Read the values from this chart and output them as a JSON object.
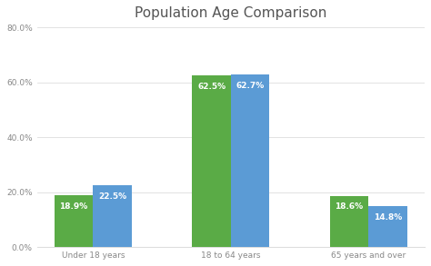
{
  "title": "Population Age Comparison",
  "categories": [
    "Under 18 years",
    "18 to 64 years",
    "65 years and over"
  ],
  "series1_values": [
    18.9,
    62.5,
    18.6
  ],
  "series2_values": [
    22.5,
    62.7,
    14.8
  ],
  "series1_color": "#5aab46",
  "series2_color": "#5b9bd5",
  "bar_label_color": "#ffffff",
  "ylim": [
    0,
    80
  ],
  "yticks": [
    0,
    20,
    40,
    60,
    80
  ],
  "ytick_labels": [
    "0.0%",
    "20.0%",
    "40.0%",
    "60.0%",
    "80.0%"
  ],
  "background_color": "#ffffff",
  "title_fontsize": 11,
  "label_fontsize": 6.5,
  "bar_label_fontsize": 6.5,
  "bar_width": 0.28,
  "title_color": "#555555",
  "tick_color": "#888888",
  "grid_color": "#dddddd"
}
